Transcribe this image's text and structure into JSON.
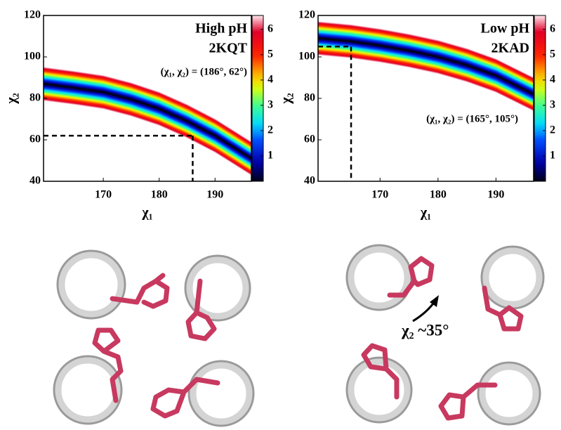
{
  "chart_data": [
    {
      "type": "heatmap",
      "annotations": [
        "High pH",
        "2KQT"
      ],
      "point_label": "(χ₁, χ₂) = (186°, 62°)",
      "point": [
        186,
        62
      ],
      "x": [
        159.3,
        165,
        170,
        175,
        180,
        185,
        190,
        196.5
      ],
      "values": [
        87,
        85,
        83,
        79.5,
        75,
        69,
        62,
        51
      ],
      "xlim": [
        159.3,
        196.5
      ],
      "ylim": [
        40,
        120
      ],
      "xticks": [
        170,
        180,
        190
      ],
      "yticks": [
        40,
        60,
        80,
        100,
        120
      ],
      "xlabel": "χ₁",
      "ylabel": "χ₂",
      "clim": [
        0,
        6.55
      ],
      "cticks": [
        1,
        2,
        3,
        4,
        5,
        6
      ]
    },
    {
      "type": "heatmap",
      "annotations": [
        "Low pH",
        "2KAD"
      ],
      "point_label": "(χ₁, χ₂) = (165°, 105°)",
      "point": [
        165,
        105
      ],
      "x": [
        159.3,
        165,
        170,
        175,
        180,
        185,
        190,
        196.5
      ],
      "values": [
        109,
        107.5,
        105.5,
        103,
        100,
        96,
        91,
        82
      ],
      "xlim": [
        159.3,
        196.5
      ],
      "ylim": [
        40,
        120
      ],
      "xticks": [
        170,
        180,
        190
      ],
      "yticks": [
        40,
        60,
        80,
        100,
        120
      ],
      "xlabel": "χ₁",
      "ylabel": "χ₂",
      "clim": [
        0,
        6.55
      ],
      "cticks": [
        1,
        2,
        3,
        4,
        5,
        6
      ]
    }
  ],
  "figure": {
    "annotation": "χ₂ ~35°"
  }
}
